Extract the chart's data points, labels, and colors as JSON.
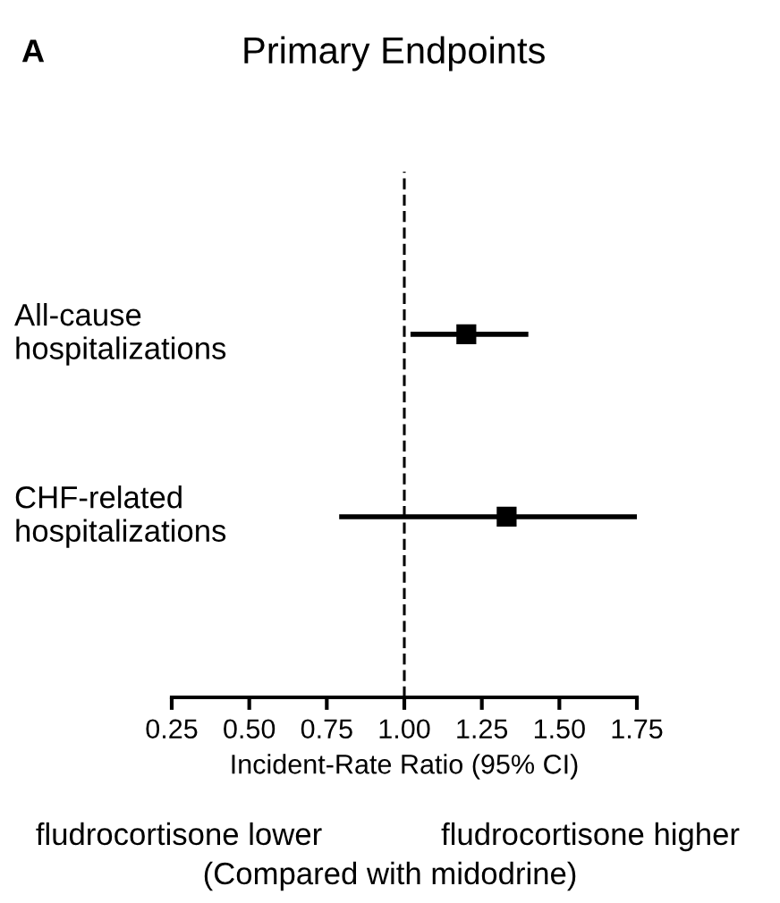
{
  "chart_data": {
    "type": "scatter",
    "title": "Primary Endpoints",
    "xlabel": "Incident-Rate Ratio (95% CI)",
    "orientation": "horizontal",
    "categories": [
      "All-cause\nhospitalizations",
      "CHF-related\nhospitalizations"
    ],
    "values": [
      1.2,
      1.33
    ],
    "errors": [
      [
        1.02,
        1.4
      ],
      [
        0.79,
        1.75
      ]
    ],
    "color": "#000000",
    "marker": "square",
    "xlim": [
      0.25,
      1.75
    ],
    "xticks": [
      {
        "value": 0.25,
        "label": "0.25"
      },
      {
        "value": 0.5,
        "label": "0.50"
      },
      {
        "value": 0.75,
        "label": "0.75"
      },
      {
        "value": 1.0,
        "label": "1.00"
      },
      {
        "value": 1.25,
        "label": "1.25"
      },
      {
        "value": 1.5,
        "label": "1.50"
      },
      {
        "value": 1.75,
        "label": "1.75"
      }
    ],
    "ref_lines": [
      {
        "axis": "x",
        "value": 1.0,
        "line_style": "dashed",
        "color": "#000000"
      }
    ],
    "tick_labels": "x",
    "annotations": [
      "A",
      "fludrocortisone lower",
      "fludrocortisone higher",
      "(Compared with midodrine)"
    ],
    "grid": false,
    "legend": false
  }
}
